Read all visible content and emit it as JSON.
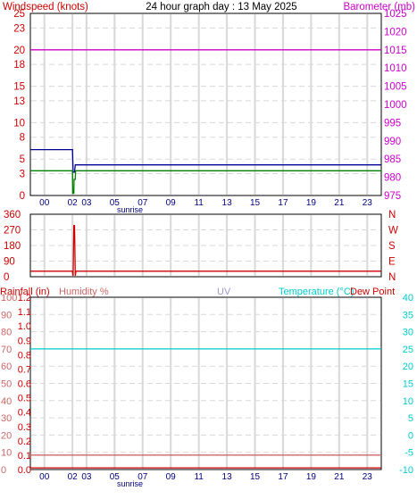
{
  "colors": {
    "wind": "#cc0000",
    "barometer": "#cc00cc",
    "axis": "#000080",
    "grid": "#d8d8d8",
    "gust": "#000099",
    "speed": "#008000",
    "direction": "#cc0000",
    "rain": "#cc0000",
    "humidity": "#cc6666",
    "uv": "#9999cc",
    "temperature": "#00cccc",
    "dewpoint": "#cc0000"
  },
  "header": {
    "title": "24 hour graph day : 13 May 2025",
    "wind_label": "Windspeed (knots)",
    "baro_label": "Barometer (mb)"
  },
  "hour_labels": [
    "00",
    "02",
    "03",
    "05",
    "07",
    "09",
    "11",
    "13",
    "15",
    "17",
    "19",
    "21",
    "23"
  ],
  "sunrise_label": "sunrise",
  "chart_data": [
    {
      "type": "line",
      "title": "24 hour graph day : 13 May 2025",
      "xlabel": "",
      "xlim": [
        -1,
        24
      ],
      "left_axis": {
        "label": "Windspeed (knots)",
        "ylim": [
          0,
          25
        ],
        "ticks": [
          0,
          3,
          5,
          8,
          10,
          13,
          15,
          18,
          20,
          23,
          25
        ]
      },
      "right_axis": {
        "label": "Barometer (mb)",
        "ylim": [
          975,
          1025
        ],
        "ticks": [
          975,
          980,
          985,
          990,
          995,
          1000,
          1005,
          1010,
          1015,
          1020,
          1025
        ]
      },
      "series": [
        {
          "axis": "right",
          "color": "#cc00cc",
          "x": [
            -1,
            24
          ],
          "y": [
            1015,
            1015
          ]
        },
        {
          "axis": "left",
          "color": "#000099",
          "x": [
            -1,
            2,
            2.05,
            2.15,
            2.2,
            24
          ],
          "y": [
            6.3,
            6.3,
            3.2,
            3.2,
            4.2,
            4.2
          ]
        },
        {
          "axis": "left",
          "color": "#008000",
          "x": [
            -1,
            2,
            2.02,
            2.1,
            2.12,
            2.2,
            2.22,
            24
          ],
          "y": [
            3.4,
            3.4,
            0.3,
            0.3,
            2.2,
            2.2,
            3.4,
            3.4
          ]
        }
      ]
    },
    {
      "type": "line",
      "xlim": [
        -1,
        24
      ],
      "left_axis": {
        "ylim": [
          0,
          360
        ],
        "ticks": [
          0,
          90,
          180,
          270,
          360
        ]
      },
      "right_axis": {
        "ticks": [
          "N",
          "E",
          "S",
          "W",
          "N"
        ]
      },
      "series": [
        {
          "color": "#cc0000",
          "x": [
            -1,
            2,
            2.05,
            2.1,
            2.15,
            2.2,
            2.25,
            24
          ],
          "y": [
            32,
            32,
            5,
            295,
            295,
            5,
            32,
            32
          ]
        }
      ]
    },
    {
      "type": "line",
      "xlim": [
        -1,
        24
      ],
      "labels": {
        "rain": "Rainfall (in)",
        "humidity": "Humidity %",
        "uv": "UV",
        "temp": "Temperature (°C)",
        "dew": "Dew Point"
      },
      "rain_ticks": [
        "0.0",
        "0.1",
        "0.2",
        "0.3",
        "0.4",
        "0.5",
        "0.6",
        "0.7",
        "0.8",
        "0.9",
        "1.0",
        "1.1",
        "1.2"
      ],
      "humidity_ticks": [
        0,
        10,
        20,
        30,
        40,
        50,
        60,
        70,
        80,
        90,
        100
      ],
      "temp_ticks": [
        -10,
        -5,
        0,
        5,
        10,
        15,
        20,
        25,
        30,
        35,
        40
      ],
      "temp_ylim": [
        -10,
        40
      ],
      "series": [
        {
          "name": "Temperature (°C)",
          "color": "#00cccc",
          "x": [
            -1,
            24
          ],
          "y": [
            25,
            25
          ]
        },
        {
          "name": "Dew Point",
          "color": "#cc6666",
          "x": [
            -1,
            24
          ],
          "y": [
            -5.8,
            -5.8
          ]
        },
        {
          "name": "Rainfall (in)",
          "color": "#cc0000",
          "x": [
            -1,
            24
          ],
          "y": [
            -9.5,
            -9.5
          ]
        }
      ]
    }
  ]
}
